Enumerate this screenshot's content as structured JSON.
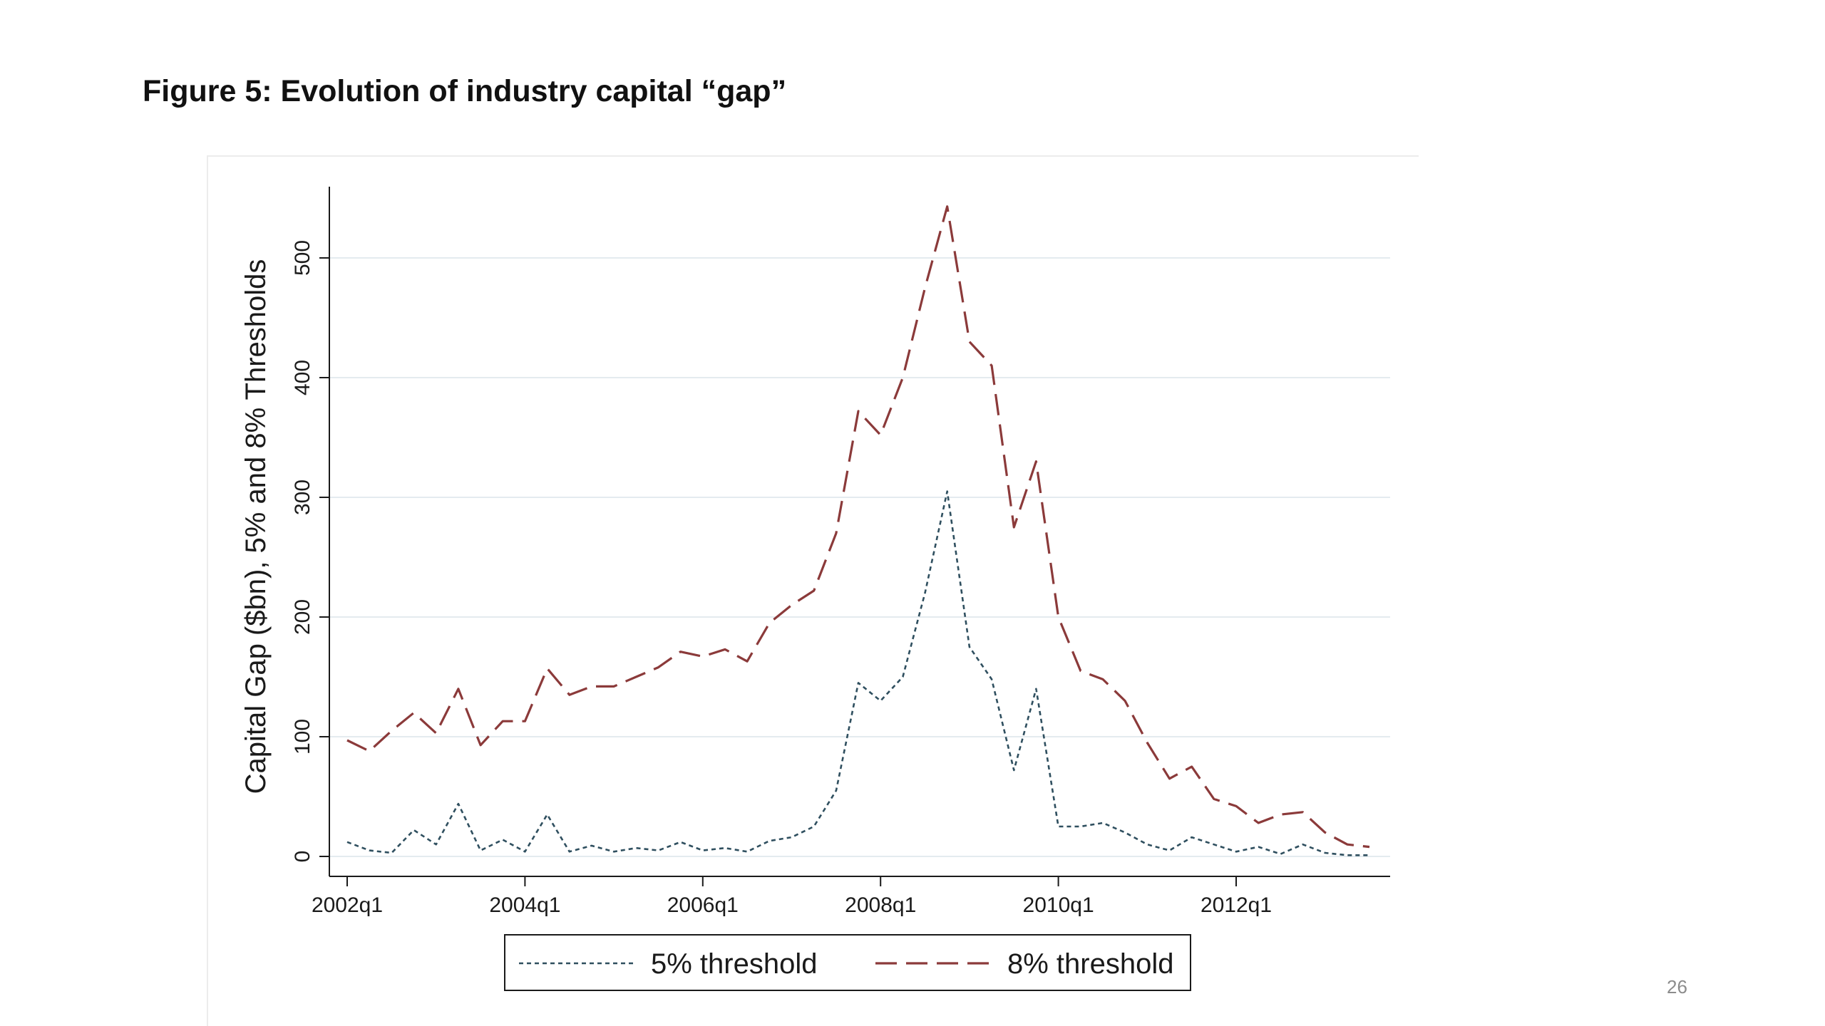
{
  "slide": {
    "title": "Figure 5: Evolution of industry capital “gap”",
    "page_number": "26"
  },
  "chart_data": {
    "type": "line",
    "title": "",
    "xlabel": "",
    "ylabel": "Capital Gap ($bn), 5% and 8% Thresholds",
    "ylim": [
      0,
      550
    ],
    "yticks": [
      0,
      100,
      200,
      300,
      400,
      500
    ],
    "xticks": [
      {
        "label": "2002q1",
        "t": 0
      },
      {
        "label": "2004q1",
        "t": 8
      },
      {
        "label": "2006q1",
        "t": 16
      },
      {
        "label": "2008q1",
        "t": 24
      },
      {
        "label": "2010q1",
        "t": 32
      },
      {
        "label": "2012q1",
        "t": 40
      }
    ],
    "xrange": [
      0,
      46
    ],
    "grid": true,
    "legend": "bottom",
    "x": [
      "2002q1",
      "2002q2",
      "2002q3",
      "2002q4",
      "2003q1",
      "2003q2",
      "2003q3",
      "2003q4",
      "2004q1",
      "2004q2",
      "2004q3",
      "2004q4",
      "2005q1",
      "2005q2",
      "2005q3",
      "2005q4",
      "2006q1",
      "2006q2",
      "2006q3",
      "2006q4",
      "2007q1",
      "2007q2",
      "2007q3",
      "2007q4",
      "2008q1",
      "2008q2",
      "2008q3",
      "2008q4",
      "2009q1",
      "2009q2",
      "2009q3",
      "2009q4",
      "2010q1",
      "2010q2",
      "2010q3",
      "2010q4",
      "2011q1",
      "2011q2",
      "2011q3",
      "2011q4",
      "2012q1",
      "2012q2",
      "2012q3",
      "2012q4",
      "2013q1",
      "2013q2",
      "2013q3"
    ],
    "series": [
      {
        "name": "5% threshold",
        "color": "#2f4f5f",
        "dash": "dotted",
        "values": [
          12,
          5,
          3,
          22,
          10,
          44,
          5,
          14,
          4,
          35,
          4,
          9,
          4,
          7,
          5,
          12,
          5,
          7,
          4,
          13,
          16,
          25,
          55,
          145,
          130,
          150,
          220,
          305,
          175,
          148,
          72,
          140,
          25,
          25,
          28,
          20,
          10,
          5,
          16,
          10,
          4,
          8,
          2,
          10,
          3,
          1,
          1
        ]
      },
      {
        "name": "8% threshold",
        "color": "#8b3a3a",
        "dash": "dashed",
        "values": [
          97,
          88,
          105,
          120,
          103,
          140,
          93,
          113,
          113,
          157,
          135,
          142,
          142,
          150,
          158,
          171,
          167,
          173,
          163,
          195,
          210,
          222,
          270,
          372,
          352,
          400,
          475,
          543,
          430,
          410,
          275,
          330,
          200,
          155,
          148,
          130,
          95,
          65,
          75,
          48,
          42,
          28,
          35,
          37,
          20,
          10,
          8
        ]
      }
    ]
  }
}
